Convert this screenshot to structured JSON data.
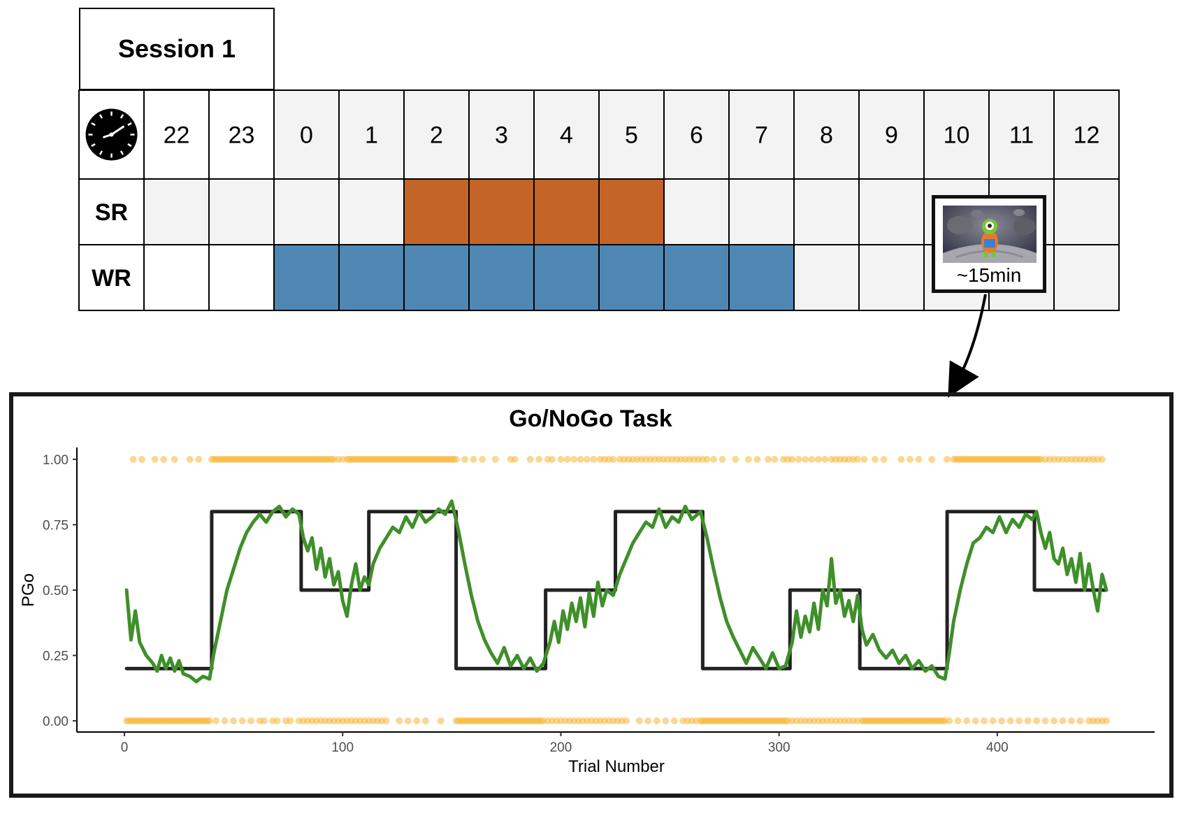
{
  "session": {
    "title": "Session 1"
  },
  "schedule": {
    "clock_icon": "clock-icon",
    "hours": [
      "22",
      "23",
      "0",
      "1",
      "2",
      "3",
      "4",
      "5",
      "6",
      "7",
      "8",
      "9",
      "10",
      "11",
      "12"
    ],
    "rows": [
      {
        "label": "SR",
        "filled_hours": [
          "2",
          "3",
          "4",
          "5"
        ],
        "color": "#C46427"
      },
      {
        "label": "WR",
        "filled_hours": [
          "0",
          "1",
          "2",
          "3",
          "4",
          "5",
          "6",
          "7"
        ],
        "color": "#4F87B3"
      }
    ],
    "shaded_header_from_hour": "0",
    "shaded_color": "#F3F3F3"
  },
  "task_box": {
    "icon": "alien-game-icon",
    "duration": "~15min"
  },
  "chart_data": {
    "type": "line",
    "title": "Go/NoGo Task",
    "xlabel": "Trial Number",
    "ylabel": "PGo",
    "xlim": [
      0,
      450
    ],
    "ylim": [
      0,
      1
    ],
    "x_ticks": [
      0,
      100,
      200,
      300,
      400
    ],
    "y_ticks": [
      "0.00",
      "0.25",
      "0.50",
      "0.75",
      "1.00"
    ],
    "grid": false,
    "series": [
      {
        "color": "#222222",
        "type": "step",
        "points": [
          [
            1,
            0.2
          ],
          [
            40,
            0.2
          ],
          [
            40,
            0.8
          ],
          [
            81,
            0.8
          ],
          [
            81,
            0.5
          ],
          [
            112,
            0.5
          ],
          [
            112,
            0.8
          ],
          [
            152,
            0.8
          ],
          [
            152,
            0.2
          ],
          [
            193,
            0.2
          ],
          [
            193,
            0.5
          ],
          [
            225,
            0.5
          ],
          [
            225,
            0.8
          ],
          [
            265,
            0.8
          ],
          [
            265,
            0.2
          ],
          [
            305,
            0.2
          ],
          [
            305,
            0.5
          ],
          [
            337,
            0.5
          ],
          [
            337,
            0.2
          ],
          [
            377,
            0.2
          ],
          [
            377,
            0.8
          ],
          [
            417,
            0.8
          ],
          [
            417,
            0.5
          ],
          [
            450,
            0.5
          ]
        ]
      },
      {
        "color": "#3F8F2A",
        "type": "line",
        "points": [
          [
            1,
            0.5
          ],
          [
            3,
            0.31
          ],
          [
            5,
            0.42
          ],
          [
            7,
            0.3
          ],
          [
            10,
            0.25
          ],
          [
            13,
            0.22
          ],
          [
            15,
            0.19
          ],
          [
            17,
            0.25
          ],
          [
            19,
            0.2
          ],
          [
            21,
            0.24
          ],
          [
            23,
            0.19
          ],
          [
            25,
            0.23
          ],
          [
            27,
            0.18
          ],
          [
            30,
            0.17
          ],
          [
            33,
            0.15
          ],
          [
            36,
            0.17
          ],
          [
            39,
            0.16
          ],
          [
            41,
            0.26
          ],
          [
            43,
            0.34
          ],
          [
            45,
            0.42
          ],
          [
            47,
            0.5
          ],
          [
            50,
            0.58
          ],
          [
            53,
            0.66
          ],
          [
            56,
            0.72
          ],
          [
            59,
            0.76
          ],
          [
            62,
            0.79
          ],
          [
            65,
            0.76
          ],
          [
            68,
            0.8
          ],
          [
            71,
            0.82
          ],
          [
            74,
            0.78
          ],
          [
            77,
            0.81
          ],
          [
            80,
            0.79
          ],
          [
            82,
            0.7
          ],
          [
            84,
            0.65
          ],
          [
            86,
            0.7
          ],
          [
            88,
            0.58
          ],
          [
            90,
            0.66
          ],
          [
            92,
            0.55
          ],
          [
            94,
            0.62
          ],
          [
            96,
            0.52
          ],
          [
            98,
            0.57
          ],
          [
            100,
            0.46
          ],
          [
            102,
            0.4
          ],
          [
            104,
            0.52
          ],
          [
            106,
            0.6
          ],
          [
            108,
            0.5
          ],
          [
            110,
            0.55
          ],
          [
            112,
            0.52
          ],
          [
            114,
            0.6
          ],
          [
            117,
            0.66
          ],
          [
            120,
            0.7
          ],
          [
            123,
            0.74
          ],
          [
            126,
            0.72
          ],
          [
            129,
            0.78
          ],
          [
            132,
            0.74
          ],
          [
            135,
            0.8
          ],
          [
            138,
            0.76
          ],
          [
            141,
            0.78
          ],
          [
            144,
            0.81
          ],
          [
            147,
            0.79
          ],
          [
            150,
            0.84
          ],
          [
            153,
            0.73
          ],
          [
            156,
            0.6
          ],
          [
            159,
            0.48
          ],
          [
            162,
            0.38
          ],
          [
            165,
            0.31
          ],
          [
            168,
            0.26
          ],
          [
            171,
            0.22
          ],
          [
            174,
            0.28
          ],
          [
            177,
            0.21
          ],
          [
            180,
            0.25
          ],
          [
            183,
            0.2
          ],
          [
            186,
            0.24
          ],
          [
            189,
            0.19
          ],
          [
            192,
            0.22
          ],
          [
            195,
            0.3
          ],
          [
            197,
            0.38
          ],
          [
            199,
            0.3
          ],
          [
            201,
            0.42
          ],
          [
            203,
            0.35
          ],
          [
            205,
            0.45
          ],
          [
            207,
            0.38
          ],
          [
            209,
            0.47
          ],
          [
            211,
            0.36
          ],
          [
            213,
            0.49
          ],
          [
            215,
            0.4
          ],
          [
            217,
            0.53
          ],
          [
            219,
            0.44
          ],
          [
            221,
            0.5
          ],
          [
            224,
            0.48
          ],
          [
            227,
            0.56
          ],
          [
            230,
            0.62
          ],
          [
            233,
            0.68
          ],
          [
            236,
            0.72
          ],
          [
            239,
            0.76
          ],
          [
            242,
            0.74
          ],
          [
            245,
            0.81
          ],
          [
            248,
            0.74
          ],
          [
            251,
            0.78
          ],
          [
            254,
            0.76
          ],
          [
            257,
            0.82
          ],
          [
            260,
            0.77
          ],
          [
            264,
            0.8
          ],
          [
            267,
            0.7
          ],
          [
            270,
            0.58
          ],
          [
            273,
            0.47
          ],
          [
            276,
            0.38
          ],
          [
            279,
            0.32
          ],
          [
            282,
            0.27
          ],
          [
            285,
            0.22
          ],
          [
            288,
            0.28
          ],
          [
            291,
            0.24
          ],
          [
            294,
            0.2
          ],
          [
            297,
            0.26
          ],
          [
            300,
            0.2
          ],
          [
            303,
            0.21
          ],
          [
            306,
            0.3
          ],
          [
            308,
            0.42
          ],
          [
            310,
            0.32
          ],
          [
            312,
            0.4
          ],
          [
            314,
            0.34
          ],
          [
            316,
            0.45
          ],
          [
            318,
            0.35
          ],
          [
            320,
            0.5
          ],
          [
            322,
            0.44
          ],
          [
            324,
            0.62
          ],
          [
            326,
            0.45
          ],
          [
            328,
            0.5
          ],
          [
            330,
            0.4
          ],
          [
            332,
            0.46
          ],
          [
            334,
            0.38
          ],
          [
            336,
            0.48
          ],
          [
            338,
            0.35
          ],
          [
            340,
            0.29
          ],
          [
            343,
            0.33
          ],
          [
            346,
            0.27
          ],
          [
            349,
            0.24
          ],
          [
            352,
            0.27
          ],
          [
            355,
            0.22
          ],
          [
            358,
            0.25
          ],
          [
            361,
            0.2
          ],
          [
            364,
            0.23
          ],
          [
            367,
            0.19
          ],
          [
            370,
            0.21
          ],
          [
            373,
            0.17
          ],
          [
            376,
            0.16
          ],
          [
            378,
            0.26
          ],
          [
            380,
            0.38
          ],
          [
            383,
            0.5
          ],
          [
            386,
            0.6
          ],
          [
            389,
            0.68
          ],
          [
            392,
            0.7
          ],
          [
            395,
            0.74
          ],
          [
            398,
            0.72
          ],
          [
            401,
            0.78
          ],
          [
            404,
            0.72
          ],
          [
            407,
            0.77
          ],
          [
            410,
            0.74
          ],
          [
            413,
            0.79
          ],
          [
            416,
            0.77
          ],
          [
            418,
            0.8
          ],
          [
            420,
            0.72
          ],
          [
            422,
            0.66
          ],
          [
            424,
            0.72
          ],
          [
            426,
            0.62
          ],
          [
            428,
            0.6
          ],
          [
            430,
            0.66
          ],
          [
            432,
            0.56
          ],
          [
            434,
            0.62
          ],
          [
            436,
            0.53
          ],
          [
            438,
            0.64
          ],
          [
            440,
            0.5
          ],
          [
            442,
            0.6
          ],
          [
            444,
            0.5
          ],
          [
            446,
            0.42
          ],
          [
            448,
            0.56
          ],
          [
            450,
            0.5
          ]
        ]
      }
    ],
    "points": {
      "color": "#F5B83D",
      "top_y": 1.0,
      "bottom_y": 0.0,
      "top_x": [
        4,
        8,
        14,
        18,
        23,
        30,
        34,
        40,
        41,
        42,
        43,
        44,
        45,
        46,
        47,
        48,
        49,
        50,
        51,
        52,
        53,
        54,
        55,
        56,
        57,
        58,
        59,
        60,
        61,
        62,
        63,
        64,
        65,
        66,
        67,
        68,
        69,
        70,
        71,
        72,
        73,
        74,
        75,
        76,
        77,
        78,
        79,
        80,
        81,
        82,
        83,
        84,
        85,
        86,
        87,
        88,
        89,
        90,
        91,
        92,
        93,
        94,
        95,
        96,
        98,
        100,
        102,
        103,
        104,
        105,
        106,
        107,
        108,
        109,
        110,
        111,
        112,
        113,
        114,
        115,
        116,
        117,
        118,
        119,
        120,
        121,
        122,
        123,
        124,
        125,
        126,
        127,
        128,
        129,
        130,
        131,
        132,
        133,
        134,
        135,
        136,
        137,
        138,
        139,
        140,
        141,
        142,
        143,
        144,
        145,
        146,
        147,
        148,
        149,
        150,
        151,
        152,
        156,
        160,
        164,
        170,
        177,
        179,
        186,
        190,
        194,
        196,
        200,
        203,
        206,
        209,
        212,
        215,
        218,
        220,
        222,
        224,
        227,
        229,
        231,
        233,
        235,
        237,
        239,
        241,
        243,
        245,
        247,
        249,
        251,
        253,
        255,
        257,
        259,
        261,
        263,
        265,
        267,
        270,
        274,
        280,
        286,
        290,
        295,
        298,
        302,
        304,
        306,
        309,
        312,
        315,
        318,
        321,
        324,
        326,
        328,
        330,
        332,
        334,
        336,
        339,
        344,
        348,
        356,
        360,
        364,
        370,
        377,
        380,
        381,
        382,
        383,
        384,
        385,
        386,
        387,
        388,
        389,
        390,
        391,
        392,
        393,
        394,
        395,
        396,
        397,
        398,
        399,
        400,
        401,
        402,
        403,
        404,
        405,
        406,
        407,
        408,
        409,
        410,
        411,
        412,
        413,
        414,
        415,
        416,
        417,
        418,
        419,
        420,
        422,
        424,
        426,
        428,
        430,
        432,
        434,
        436,
        438,
        440,
        442,
        444,
        446,
        448
      ],
      "bottom_x": [
        1,
        2,
        3,
        4,
        5,
        6,
        7,
        8,
        9,
        10,
        11,
        12,
        13,
        14,
        15,
        16,
        17,
        18,
        19,
        20,
        21,
        22,
        23,
        24,
        25,
        26,
        27,
        28,
        29,
        30,
        31,
        32,
        33,
        34,
        35,
        36,
        37,
        38,
        39,
        42,
        46,
        50,
        54,
        58,
        62,
        64,
        68,
        70,
        74,
        76,
        80,
        82,
        84,
        86,
        88,
        90,
        92,
        94,
        96,
        98,
        100,
        102,
        104,
        106,
        108,
        110,
        112,
        114,
        116,
        118,
        120,
        126,
        130,
        134,
        138,
        145,
        152,
        153,
        154,
        155,
        156,
        157,
        158,
        159,
        160,
        161,
        162,
        163,
        164,
        165,
        166,
        167,
        168,
        169,
        170,
        171,
        172,
        173,
        174,
        175,
        176,
        177,
        178,
        179,
        180,
        181,
        182,
        183,
        184,
        185,
        186,
        187,
        188,
        189,
        190,
        191,
        192,
        194,
        196,
        198,
        200,
        202,
        204,
        206,
        208,
        210,
        212,
        214,
        216,
        218,
        220,
        222,
        224,
        226,
        228,
        230,
        236,
        240,
        244,
        248,
        252,
        256,
        258,
        260,
        262,
        264,
        265,
        266,
        267,
        268,
        269,
        270,
        271,
        272,
        273,
        274,
        275,
        276,
        277,
        278,
        279,
        280,
        281,
        282,
        283,
        284,
        285,
        286,
        287,
        288,
        289,
        290,
        291,
        292,
        293,
        294,
        295,
        296,
        297,
        298,
        299,
        300,
        301,
        302,
        303,
        304,
        306,
        308,
        310,
        312,
        314,
        316,
        318,
        320,
        322,
        324,
        326,
        328,
        330,
        332,
        334,
        336,
        338,
        339,
        340,
        341,
        342,
        343,
        344,
        345,
        346,
        347,
        348,
        349,
        350,
        351,
        352,
        353,
        354,
        355,
        356,
        357,
        358,
        359,
        360,
        361,
        362,
        363,
        364,
        365,
        366,
        367,
        368,
        369,
        370,
        371,
        372,
        373,
        374,
        375,
        376,
        378,
        382,
        386,
        390,
        394,
        398,
        402,
        406,
        410,
        414,
        418,
        422,
        426,
        430,
        434,
        438,
        442,
        444,
        446,
        448,
        450
      ]
    }
  }
}
